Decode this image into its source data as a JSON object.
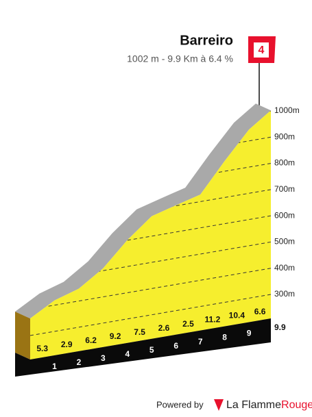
{
  "chart_data": {
    "type": "area",
    "title": "Barreiro",
    "subtitle": "1002 m - 9.9 Km à 6.4 %",
    "category": "4",
    "x": [
      0,
      1,
      2,
      3,
      4,
      5,
      6,
      7,
      8,
      9,
      9.9
    ],
    "values": [
      365,
      418,
      447,
      509,
      601,
      676,
      702,
      727,
      839,
      943,
      1002
    ],
    "gradients": [
      5.3,
      2.9,
      6.2,
      9.2,
      7.5,
      2.6,
      2.5,
      11.2,
      10.4,
      6.6
    ],
    "xlim": [
      0,
      9.9
    ],
    "xticks": [
      1,
      2,
      3,
      4,
      5,
      6,
      7,
      8,
      9,
      9.9
    ],
    "ylim": [
      300,
      1000
    ],
    "yticks": [
      {
        "value": 300,
        "label": "300m"
      },
      {
        "value": 400,
        "label": "400m"
      },
      {
        "value": 500,
        "label": "500m"
      },
      {
        "value": 600,
        "label": "600m"
      },
      {
        "value": 700,
        "label": "700m"
      },
      {
        "value": 800,
        "label": "800m"
      },
      {
        "value": 900,
        "label": "900m"
      },
      {
        "value": 1000,
        "label": "1000m"
      }
    ],
    "grid": true,
    "color": "#f6ee2e",
    "top_color": "#a9a9a9",
    "side_color": "#9a7414"
  },
  "footer": {
    "powered": "Powered by",
    "brand": "La Flamme",
    "brand_accent": "Rouge"
  }
}
